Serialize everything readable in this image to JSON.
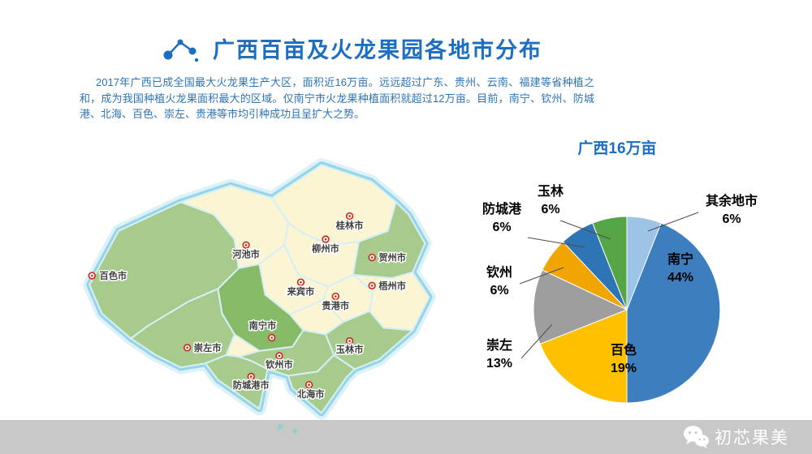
{
  "header": {
    "title": "广西百亩及火龙果园各地市分布"
  },
  "intro": {
    "text": "2017年广西已成全国最大火龙果生产大区，面积近16万亩。远远超过广东、贵州、云南、福建等省种植之和，成为我国种植火龙果面积最大的区域。仅南宁市火龙果种植面积就超过12万亩。目前，南宁、钦州、防城港、北海、百色、崇左、贵港等市均引种成功且呈扩大之势。",
    "accent_color": "#2e74b5"
  },
  "map": {
    "colors": {
      "planted": "#a6cb8c",
      "nanning": "#88bb67",
      "unplanted": "#fbf5d3",
      "border": "#96d4e8",
      "marker": "#cc2a1e"
    },
    "cities": [
      {
        "label": "百色市",
        "highlighted": true
      },
      {
        "label": "河池市",
        "highlighted": false
      },
      {
        "label": "桂林市",
        "highlighted": false
      },
      {
        "label": "柳州市",
        "highlighted": false
      },
      {
        "label": "贺州市",
        "highlighted": true
      },
      {
        "label": "来宾市",
        "highlighted": false
      },
      {
        "label": "梧州市",
        "highlighted": false
      },
      {
        "label": "贵港市",
        "highlighted": false
      },
      {
        "label": "南宁市",
        "highlighted": true
      },
      {
        "label": "崇左市",
        "highlighted": true
      },
      {
        "label": "玉林市",
        "highlighted": true
      },
      {
        "label": "钦州市",
        "highlighted": true
      },
      {
        "label": "防城港市",
        "highlighted": true
      },
      {
        "label": "北海市",
        "highlighted": true
      }
    ]
  },
  "chart_data": {
    "type": "pie",
    "title": "广西16万亩",
    "legend_position": "none",
    "slices": [
      {
        "name": "其余地市",
        "value": 6,
        "pct": "6%",
        "color": "#9dc3e6"
      },
      {
        "name": "南宁",
        "value": 44,
        "pct": "44%",
        "color": "#3c7ebe"
      },
      {
        "name": "百色",
        "value": 19,
        "pct": "19%",
        "color": "#ffc000"
      },
      {
        "name": "崇左",
        "value": 13,
        "pct": "13%",
        "color": "#9e9e9e"
      },
      {
        "name": "钦州",
        "value": 6,
        "pct": "6%",
        "color": "#f0a500"
      },
      {
        "name": "防城港",
        "value": 6,
        "pct": "6%",
        "color": "#2e75b6"
      },
      {
        "name": "玉林",
        "value": 6,
        "pct": "6%",
        "color": "#55a546"
      }
    ]
  },
  "watermark": {
    "text": "初芯果美"
  }
}
